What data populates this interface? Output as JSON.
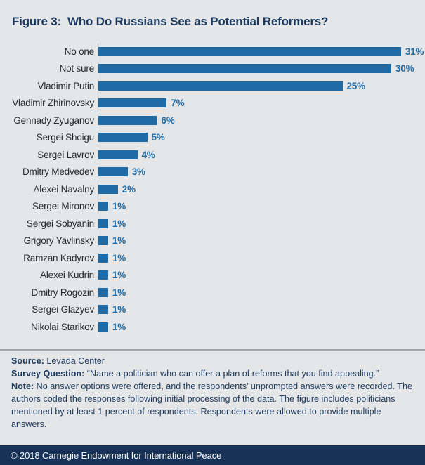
{
  "figure": {
    "title": "Figure 3:  Who Do Russians See as Potential Reformers?"
  },
  "chart_data": {
    "type": "bar",
    "orientation": "horizontal",
    "categories": [
      "No one",
      "Not sure",
      "Vladimir Putin",
      "Vladimir Zhirinovsky",
      "Gennady Zyuganov",
      "Sergei Shoigu",
      "Sergei Lavrov",
      "Dmitry Medvedev",
      "Alexei Navalny",
      "Sergei Mironov",
      "Sergei Sobyanin",
      "Grigory Yavlinsky",
      "Ramzan Kadyrov",
      "Alexei Kudrin",
      "Dmitry Rogozin",
      "Sergei Glazyev",
      "Nikolai Starikov"
    ],
    "values": [
      31,
      30,
      25,
      7,
      6,
      5,
      4,
      3,
      2,
      1,
      1,
      1,
      1,
      1,
      1,
      1,
      1
    ],
    "value_suffix": "%",
    "xlim": [
      0,
      31
    ],
    "grid": false,
    "legend": false,
    "bar_color": "#1f6ba6",
    "value_label_color": "#1f6ba6"
  },
  "notes": {
    "source_label": "Source:",
    "source_text": " Levada Center",
    "survey_label": "Survey Question:",
    "survey_text": " “Name a politician who can offer a plan of reforms that you find appealing.”",
    "note_label": "Note:",
    "note_text": " No answer options were offered, and the respondents’ unprompted answers were recorded. The authors coded the responses following initial processing of the data. The figure includes politicians mentioned by at least 1 percent of respondents. Respondents were allowed to provide multiple answers."
  },
  "footer": {
    "copyright": "© 2018 Carnegie Endowment for International Peace"
  },
  "colors": {
    "background": "#e5e6e8",
    "bar": "#1f6ba6",
    "title_text": "#1b3a60",
    "notes_text": "#1b3a5e",
    "category_text": "#26292d",
    "axis_line": "#8d9298",
    "divider": "#a0a5ab",
    "footer_background": "#173157",
    "footer_text": "#ffffff"
  }
}
